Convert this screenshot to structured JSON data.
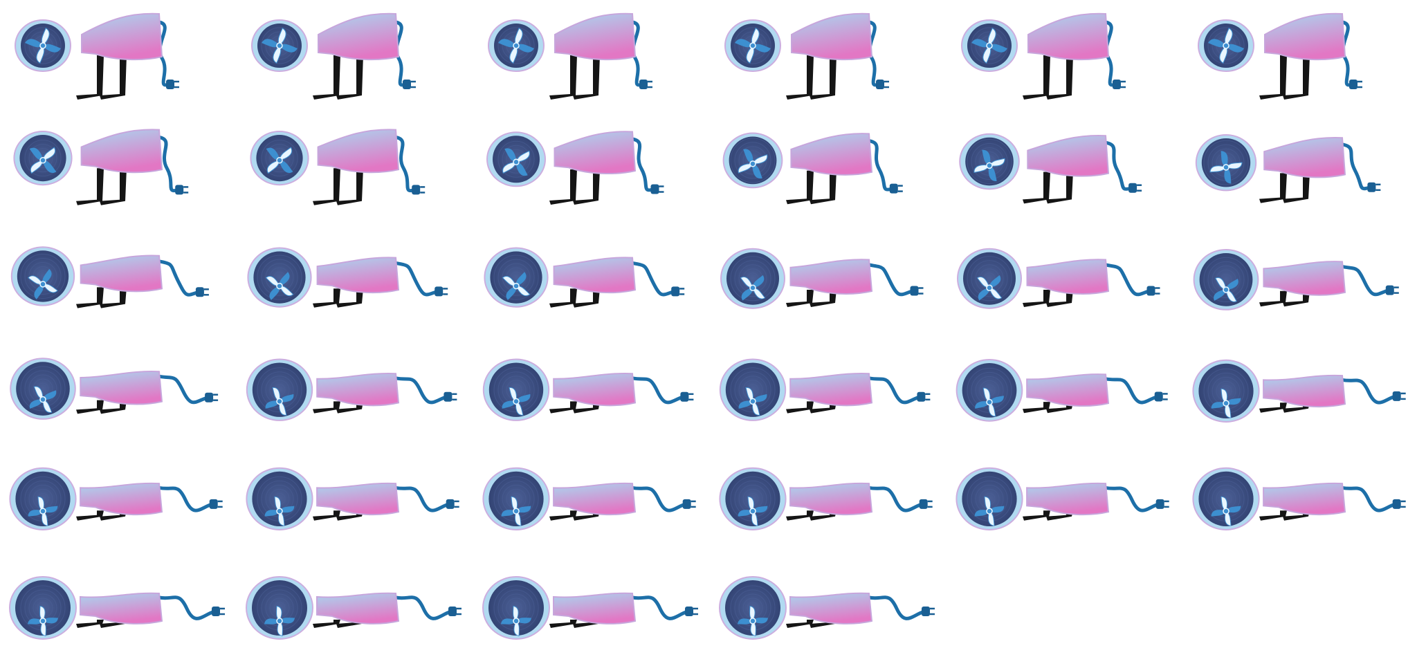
{
  "sprite_sheet": {
    "subject": "fan-robot-creature",
    "columns": 6,
    "frame_count": 34,
    "colors": {
      "background": "#ffffff",
      "body_top": "#a9d6f0",
      "body_bottom": "#e277c4",
      "body_outline": "#c7a6dc",
      "fan_housing_dark": "#2f3f6e",
      "fan_housing_mid": "#4b5f95",
      "fan_blade": "#e9f6ff",
      "fan_blade_accent": "#3d8fd0",
      "cord": "#1d6fa8",
      "plug": "#1a5f93",
      "legs": "#151515"
    },
    "frames": [
      {
        "pose": 0.0
      },
      {
        "pose": 0.0
      },
      {
        "pose": 0.0
      },
      {
        "pose": 0.0
      },
      {
        "pose": 0.0
      },
      {
        "pose": 0.0
      },
      {
        "pose": 0.2
      },
      {
        "pose": 0.2
      },
      {
        "pose": 0.25
      },
      {
        "pose": 0.3
      },
      {
        "pose": 0.35
      },
      {
        "pose": 0.4
      },
      {
        "pose": 0.65
      },
      {
        "pose": 0.7
      },
      {
        "pose": 0.7
      },
      {
        "pose": 0.75
      },
      {
        "pose": 0.75
      },
      {
        "pose": 0.8
      },
      {
        "pose": 0.85
      },
      {
        "pose": 0.9
      },
      {
        "pose": 0.9
      },
      {
        "pose": 0.9
      },
      {
        "pose": 0.92
      },
      {
        "pose": 0.95
      },
      {
        "pose": 0.95
      },
      {
        "pose": 0.95
      },
      {
        "pose": 0.95
      },
      {
        "pose": 0.95
      },
      {
        "pose": 0.95
      },
      {
        "pose": 0.95
      },
      {
        "pose": 1.0
      },
      {
        "pose": 1.0
      },
      {
        "pose": 1.0
      },
      {
        "pose": 1.0
      }
    ]
  }
}
